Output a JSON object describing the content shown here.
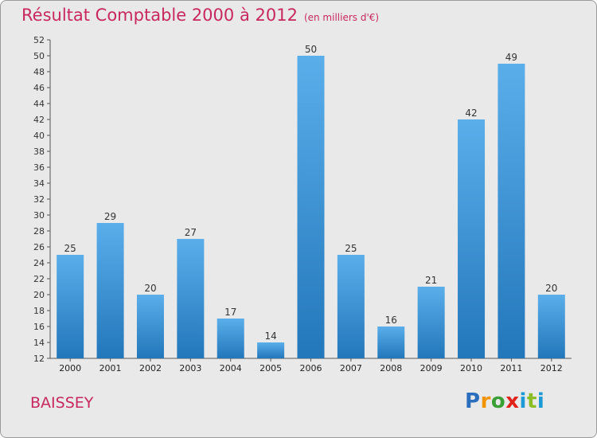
{
  "header": {
    "title": "Résultat Comptable 2000 à 2012",
    "subtitle": "(en milliers d'€)"
  },
  "commune": "BAISSEY",
  "logo": {
    "letters": [
      "P",
      "r",
      "o",
      "x",
      "i",
      "t",
      "i"
    ]
  },
  "colors": {
    "bar_light": "#5aaeea",
    "bar_dark": "#2277bb",
    "title": "#c8285f",
    "background": "#e9e9e9"
  },
  "chart_data": {
    "type": "bar",
    "title": "Résultat Comptable 2000 à 2012",
    "subtitle": "(en milliers d'€)",
    "xlabel": "",
    "ylabel": "",
    "categories": [
      "2000",
      "2001",
      "2002",
      "2003",
      "2004",
      "2005",
      "2006",
      "2007",
      "2008",
      "2009",
      "2010",
      "2011",
      "2012"
    ],
    "values": [
      25,
      29,
      20,
      27,
      17,
      14,
      50,
      25,
      16,
      21,
      42,
      49,
      20
    ],
    "ylim": [
      12,
      52
    ],
    "ytick_step": 2,
    "grid": false,
    "data_labels": true
  }
}
